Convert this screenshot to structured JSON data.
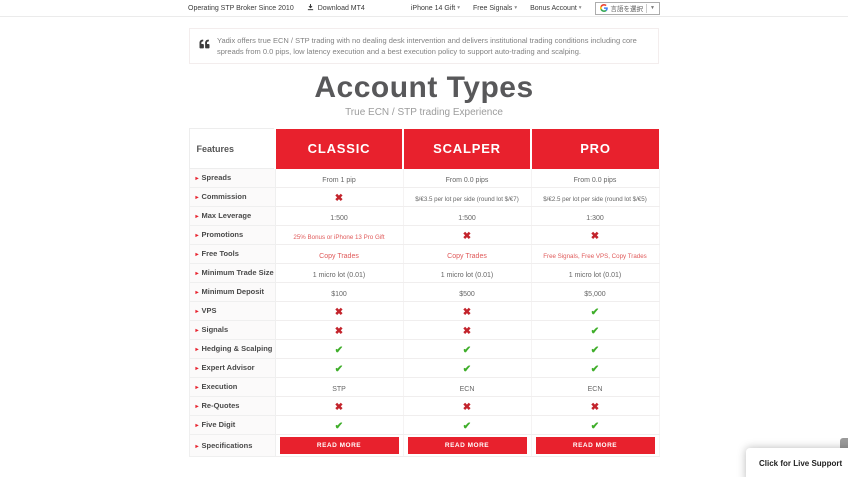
{
  "topbar": {
    "operating_text": "Operating STP Broker Since 2010",
    "download_label": "Download MT4",
    "menu_items": [
      "iPhone 14 Gift",
      "Free Signals",
      "Bonus Account"
    ],
    "translate": {
      "label": "言語を選択",
      "caret": "▼"
    }
  },
  "quote": {
    "text": "Yadix offers true ECN / STP trading with no dealing desk intervention and delivers institutional trading conditions including core spreads from 0.0 pips, low latency execution and a best execution policy to support auto-trading and scalping."
  },
  "header": {
    "title": "Account Types",
    "subtitle": "True ECN / STP trading Experience"
  },
  "table": {
    "features_header": "Features",
    "columns": [
      "CLASSIC",
      "SCALPER",
      "PRO"
    ],
    "rows": [
      {
        "label": "Spreads",
        "cells": [
          {
            "type": "text",
            "value": "From 1 pip"
          },
          {
            "type": "text",
            "value": "From 0.0 pips"
          },
          {
            "type": "text",
            "value": "From 0.0 pips"
          }
        ]
      },
      {
        "label": "Commission",
        "cells": [
          {
            "type": "cross"
          },
          {
            "type": "text",
            "value": "$/€3.5 per lot per side (round lot $/€7)"
          },
          {
            "type": "text",
            "value": "$/€2.5 per lot per side (round lot $/€5)"
          }
        ]
      },
      {
        "label": "Max Leverage",
        "cells": [
          {
            "type": "text",
            "value": "1:500"
          },
          {
            "type": "text",
            "value": "1:500"
          },
          {
            "type": "text",
            "value": "1:300"
          }
        ]
      },
      {
        "label": "Promotions",
        "cells": [
          {
            "type": "link",
            "value": "25% Bonus or iPhone 13 Pro Gift"
          },
          {
            "type": "cross"
          },
          {
            "type": "cross"
          }
        ]
      },
      {
        "label": "Free Tools",
        "cells": [
          {
            "type": "link",
            "value": "Copy Trades"
          },
          {
            "type": "link",
            "value": "Copy Trades"
          },
          {
            "type": "link",
            "value": "Free Signals, Free VPS, Copy Trades"
          }
        ]
      },
      {
        "label": "Minimum Trade Size",
        "cells": [
          {
            "type": "text",
            "value": "1 micro lot (0.01)"
          },
          {
            "type": "text",
            "value": "1 micro lot (0.01)"
          },
          {
            "type": "text",
            "value": "1 micro lot (0.01)"
          }
        ]
      },
      {
        "label": "Minimum Deposit",
        "cells": [
          {
            "type": "text",
            "value": "$100"
          },
          {
            "type": "text",
            "value": "$500"
          },
          {
            "type": "text",
            "value": "$5,000"
          }
        ]
      },
      {
        "label": "VPS",
        "cells": [
          {
            "type": "cross"
          },
          {
            "type": "cross"
          },
          {
            "type": "check"
          }
        ]
      },
      {
        "label": "Signals",
        "cells": [
          {
            "type": "cross"
          },
          {
            "type": "cross"
          },
          {
            "type": "check"
          }
        ]
      },
      {
        "label": "Hedging & Scalping",
        "cells": [
          {
            "type": "check"
          },
          {
            "type": "check"
          },
          {
            "type": "check"
          }
        ]
      },
      {
        "label": "Expert Advisor",
        "cells": [
          {
            "type": "check"
          },
          {
            "type": "check"
          },
          {
            "type": "check"
          }
        ]
      },
      {
        "label": "Execution",
        "cells": [
          {
            "type": "text",
            "value": "STP"
          },
          {
            "type": "text",
            "value": "ECN"
          },
          {
            "type": "text",
            "value": "ECN"
          }
        ]
      },
      {
        "label": "Re-Quotes",
        "cells": [
          {
            "type": "cross"
          },
          {
            "type": "cross"
          },
          {
            "type": "cross"
          }
        ]
      },
      {
        "label": "Five Digit",
        "cells": [
          {
            "type": "check"
          },
          {
            "type": "check"
          },
          {
            "type": "check"
          }
        ]
      },
      {
        "label": "Specifications",
        "cells": [
          {
            "type": "button",
            "value": "READ MORE"
          },
          {
            "type": "button",
            "value": "READ MORE"
          },
          {
            "type": "button",
            "value": "READ MORE"
          }
        ]
      }
    ]
  },
  "live_support": {
    "label": "Click for Live Support"
  },
  "icons": {
    "check": "✔",
    "cross": "✖",
    "arrow": "▸",
    "caret": "▾"
  },
  "colors": {
    "accent_red": "#e8212d",
    "link_red": "#e05a5a",
    "check_green": "#3fae2a",
    "cross_red": "#c3242c"
  }
}
